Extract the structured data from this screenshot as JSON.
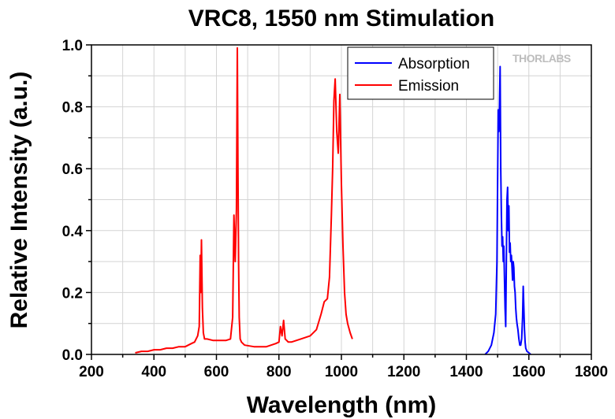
{
  "chart_data": {
    "type": "line",
    "title": "VRC8, 1550 nm Stimulation",
    "xlabel": "Wavelength (nm)",
    "ylabel": "Relative Intensity (a.u.)",
    "xlim": [
      200,
      1800
    ],
    "ylim": [
      0,
      1.0
    ],
    "x_ticks": [
      200,
      400,
      600,
      800,
      1000,
      1200,
      1400,
      1600,
      1800
    ],
    "x_tick_labels": [
      "200",
      "400",
      "600",
      "800",
      "1000",
      "1200",
      "1400",
      "1600",
      "1800"
    ],
    "y_ticks": [
      0,
      0.2,
      0.4,
      0.6,
      0.8,
      1.0
    ],
    "y_tick_labels": [
      "0.0",
      "0.2",
      "0.4",
      "0.6",
      "0.8",
      "1.0"
    ],
    "grid": true,
    "legend_position": "top-right",
    "logo_text": "THORLABS",
    "series": [
      {
        "name": "Absorption",
        "color": "#0000ff",
        "x": [
          1460,
          1470,
          1480,
          1488,
          1494,
          1498,
          1500,
          1502,
          1504,
          1506,
          1508,
          1510,
          1512,
          1514,
          1516,
          1518,
          1520,
          1522,
          1524,
          1526,
          1528,
          1530,
          1532,
          1534,
          1536,
          1538,
          1540,
          1542,
          1544,
          1546,
          1548,
          1550,
          1552,
          1554,
          1556,
          1558,
          1560,
          1562,
          1565,
          1568,
          1571,
          1574,
          1577,
          1580,
          1582,
          1584,
          1586,
          1588,
          1590,
          1594,
          1600,
          1606
        ],
        "y": [
          0.0,
          0.01,
          0.03,
          0.07,
          0.13,
          0.3,
          0.55,
          0.79,
          0.72,
          0.8,
          0.93,
          0.6,
          0.45,
          0.35,
          0.38,
          0.3,
          0.35,
          0.25,
          0.15,
          0.09,
          0.3,
          0.5,
          0.54,
          0.4,
          0.48,
          0.33,
          0.36,
          0.3,
          0.32,
          0.28,
          0.24,
          0.3,
          0.28,
          0.22,
          0.2,
          0.15,
          0.12,
          0.1,
          0.08,
          0.05,
          0.03,
          0.03,
          0.05,
          0.12,
          0.22,
          0.15,
          0.08,
          0.04,
          0.02,
          0.01,
          0.005,
          0.0
        ]
      },
      {
        "name": "Emission",
        "color": "#ff0000",
        "x": [
          340,
          360,
          380,
          400,
          420,
          440,
          460,
          480,
          500,
          510,
          520,
          530,
          535,
          540,
          545,
          548,
          550,
          552,
          555,
          558,
          562,
          570,
          590,
          610,
          630,
          645,
          652,
          656,
          660,
          664,
          667,
          669,
          671,
          673,
          676,
          680,
          690,
          720,
          760,
          790,
          800,
          805,
          810,
          815,
          820,
          825,
          830,
          840,
          870,
          900,
          920,
          935,
          945,
          955,
          962,
          968,
          972,
          976,
          980,
          985,
          990,
          995,
          1000,
          1005,
          1010,
          1015,
          1020,
          1028,
          1035
        ],
        "y": [
          0.005,
          0.01,
          0.01,
          0.015,
          0.015,
          0.02,
          0.02,
          0.025,
          0.025,
          0.03,
          0.035,
          0.04,
          0.05,
          0.06,
          0.09,
          0.32,
          0.2,
          0.37,
          0.15,
          0.07,
          0.05,
          0.05,
          0.045,
          0.045,
          0.045,
          0.05,
          0.12,
          0.45,
          0.3,
          0.47,
          0.99,
          0.6,
          0.3,
          0.12,
          0.05,
          0.04,
          0.03,
          0.025,
          0.025,
          0.035,
          0.04,
          0.09,
          0.06,
          0.11,
          0.05,
          0.045,
          0.04,
          0.04,
          0.05,
          0.06,
          0.08,
          0.13,
          0.17,
          0.18,
          0.25,
          0.45,
          0.6,
          0.82,
          0.89,
          0.72,
          0.65,
          0.84,
          0.55,
          0.35,
          0.2,
          0.13,
          0.1,
          0.07,
          0.05
        ]
      }
    ]
  }
}
